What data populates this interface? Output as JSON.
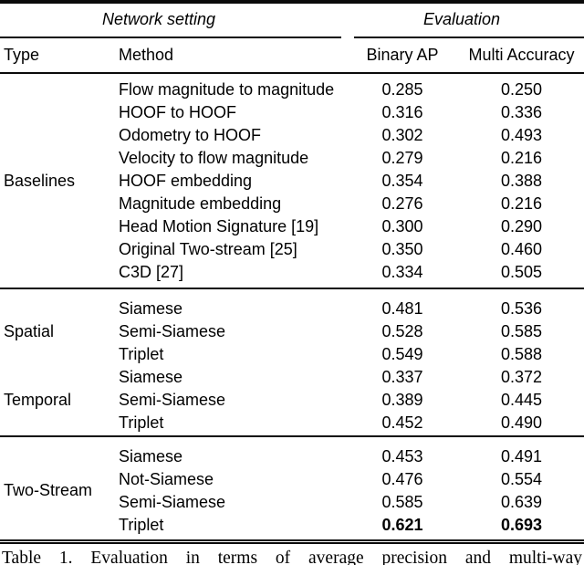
{
  "header": {
    "group_left": "Network setting",
    "group_right": "Evaluation",
    "columns": {
      "type": "Type",
      "method": "Method",
      "binary_ap": "Binary AP",
      "multi_accuracy": "Multi Accuracy"
    }
  },
  "groups": [
    {
      "type": "Baselines",
      "rows": [
        {
          "method": "Flow magnitude to magnitude",
          "binary_ap": "0.285",
          "multi_accuracy": "0.250",
          "bold": false
        },
        {
          "method": "HOOF to HOOF",
          "binary_ap": "0.316",
          "multi_accuracy": "0.336",
          "bold": false
        },
        {
          "method": "Odometry to HOOF",
          "binary_ap": "0.302",
          "multi_accuracy": "0.493",
          "bold": false
        },
        {
          "method": "Velocity to flow magnitude",
          "binary_ap": "0.279",
          "multi_accuracy": "0.216",
          "bold": false
        },
        {
          "method": "HOOF embedding",
          "binary_ap": "0.354",
          "multi_accuracy": "0.388",
          "bold": false
        },
        {
          "method": "Magnitude embedding",
          "binary_ap": "0.276",
          "multi_accuracy": "0.216",
          "bold": false
        },
        {
          "method": "Head Motion Signature [19]",
          "binary_ap": "0.300",
          "multi_accuracy": "0.290",
          "bold": false
        },
        {
          "method": "Original Two-stream [25]",
          "binary_ap": "0.350",
          "multi_accuracy": "0.460",
          "bold": false
        },
        {
          "method": "C3D [27]",
          "binary_ap": "0.334",
          "multi_accuracy": "0.505",
          "bold": false
        }
      ]
    },
    {
      "type": "Spatial",
      "rows": [
        {
          "method": "Siamese",
          "binary_ap": "0.481",
          "multi_accuracy": "0.536",
          "bold": false
        },
        {
          "method": "Semi-Siamese",
          "binary_ap": "0.528",
          "multi_accuracy": "0.585",
          "bold": false
        },
        {
          "method": "Triplet",
          "binary_ap": "0.549",
          "multi_accuracy": "0.588",
          "bold": false
        }
      ]
    },
    {
      "type": "Temporal",
      "rows": [
        {
          "method": "Siamese",
          "binary_ap": "0.337",
          "multi_accuracy": "0.372",
          "bold": false
        },
        {
          "method": "Semi-Siamese",
          "binary_ap": "0.389",
          "multi_accuracy": "0.445",
          "bold": false
        },
        {
          "method": "Triplet",
          "binary_ap": "0.452",
          "multi_accuracy": "0.490",
          "bold": false
        }
      ]
    },
    {
      "type": "Two-Stream",
      "rows": [
        {
          "method": "Siamese",
          "binary_ap": "0.453",
          "multi_accuracy": "0.491",
          "bold": false
        },
        {
          "method": "Not-Siamese",
          "binary_ap": "0.476",
          "multi_accuracy": "0.554",
          "bold": false
        },
        {
          "method": "Semi-Siamese",
          "binary_ap": "0.585",
          "multi_accuracy": "0.639",
          "bold": false
        },
        {
          "method": "Triplet",
          "binary_ap": "0.621",
          "multi_accuracy": "0.693",
          "bold": true
        }
      ]
    }
  ],
  "caption": "Table 1. Evaluation in terms of average precision and multi-way"
}
